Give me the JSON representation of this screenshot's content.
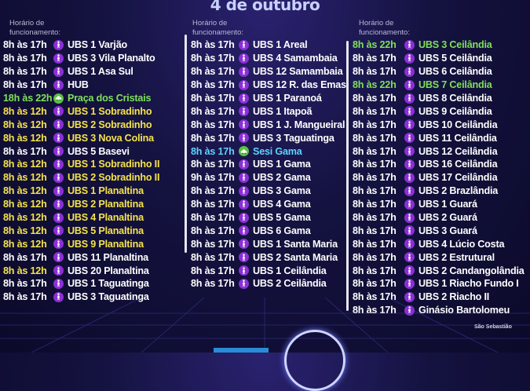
{
  "title": "4 de outubro",
  "header_label_line1": "Horário de",
  "header_label_line2": "funcionamento:",
  "footer_note": "São Sebastião",
  "colors": {
    "yellow": "#f5e34a",
    "green": "#7fe05a",
    "blue": "#5ed3ff",
    "purple_icon": "#8b2fd6",
    "green_icon": "#5cbf45"
  },
  "columns": [
    {
      "rows": [
        {
          "time": "8h às 17h",
          "name": "UBS 1 Varjão",
          "color": "white",
          "icon": "vaccine-person-icon"
        },
        {
          "time": "8h às 17h",
          "name": "UBS 3 Vila Planalto",
          "color": "white",
          "icon": "vaccine-person-icon"
        },
        {
          "time": "8h às 17h",
          "name": "UBS 1 Asa Sul",
          "color": "white",
          "icon": "vaccine-person-icon"
        },
        {
          "time": "8h às 17h",
          "name": "HUB",
          "color": "white",
          "icon": "vaccine-person-icon"
        },
        {
          "time": "18h às 22h",
          "name": "Praça dos Cristais",
          "color": "green",
          "icon": "drive-thru-icon"
        },
        {
          "time": "8h às 12h",
          "name": "UBS 1 Sobradinho",
          "color": "yellow",
          "icon": "vaccine-person-icon"
        },
        {
          "time": "8h às 12h",
          "name": "UBS 2 Sobradinho",
          "color": "yellow",
          "icon": "vaccine-person-icon"
        },
        {
          "time": "8h às 12h",
          "name": "UBS 3 Nova Colina",
          "color": "yellow",
          "icon": "vaccine-person-icon"
        },
        {
          "time": "8h às 17h",
          "name": "UBS 5 Basevi",
          "color": "white",
          "icon": "vaccine-person-icon"
        },
        {
          "time": "8h às 12h",
          "name": "UBS 1 Sobradinho II",
          "color": "yellow",
          "icon": "vaccine-person-icon"
        },
        {
          "time": "8h às 12h",
          "name": "UBS 2 Sobradinho II",
          "color": "yellow",
          "icon": "vaccine-person-icon"
        },
        {
          "time": "8h às 12h",
          "name": "UBS 1 Planaltina",
          "color": "yellow",
          "icon": "vaccine-person-icon"
        },
        {
          "time": "8h às 12h",
          "name": "UBS 2 Planaltina",
          "color": "yellow",
          "icon": "vaccine-person-icon"
        },
        {
          "time": "8h às 12h",
          "name": "UBS 4 Planaltina",
          "color": "yellow",
          "icon": "vaccine-person-icon"
        },
        {
          "time": "8h às 12h",
          "name": "UBS 5 Planaltina",
          "color": "yellow",
          "icon": "vaccine-person-icon"
        },
        {
          "time": "8h às 12h",
          "name": "UBS 9 Planaltina",
          "color": "yellow",
          "icon": "vaccine-person-icon"
        },
        {
          "time": "8h às 17h",
          "name": "UBS 11 Planaltina",
          "color": "white",
          "icon": "vaccine-person-icon"
        },
        {
          "time": "8h às 12h",
          "name": "UBS 20 Planaltina",
          "color": "white",
          "time_color": "yellow",
          "icon": "vaccine-person-icon"
        },
        {
          "time": "8h às 17h",
          "name": "UBS 1 Taguatinga",
          "color": "white",
          "icon": "vaccine-person-icon"
        },
        {
          "time": "8h às 17h",
          "name": "UBS 3 Taguatinga",
          "color": "white",
          "icon": "vaccine-person-icon"
        }
      ]
    },
    {
      "rows": [
        {
          "time": "8h às 17h",
          "name": "UBS 1 Areal",
          "color": "white",
          "icon": "vaccine-person-icon"
        },
        {
          "time": "8h às 17h",
          "name": "UBS 4 Samambaia",
          "color": "white",
          "icon": "vaccine-person-icon"
        },
        {
          "time": "8h às 17h",
          "name": "UBS 12 Samambaia",
          "color": "white",
          "icon": "vaccine-person-icon"
        },
        {
          "time": "8h às 17h",
          "name": "UBS 12 R. das Emas",
          "color": "white",
          "icon": "vaccine-person-icon"
        },
        {
          "time": "8h às 17h",
          "name": "UBS 1 Paranoá",
          "color": "white",
          "icon": "vaccine-person-icon"
        },
        {
          "time": "8h às 17h",
          "name": "UBS 1 Itapoã",
          "color": "white",
          "icon": "vaccine-person-icon"
        },
        {
          "time": "8h às 17h",
          "name": "UBS 1 J. Mangueiral",
          "color": "white",
          "icon": "vaccine-person-icon"
        },
        {
          "time": "8h às 17h",
          "name": "UBS 3 Taguatinga",
          "color": "white",
          "icon": "vaccine-person-icon"
        },
        {
          "time": "8h às 17h",
          "name": "Sesi Gama",
          "color": "blue",
          "icon": "drive-thru-icon"
        },
        {
          "time": "8h às 17h",
          "name": "UBS 1 Gama",
          "color": "white",
          "icon": "vaccine-person-icon"
        },
        {
          "time": "9h às 17h",
          "name": "UBS 2 Gama",
          "color": "white",
          "icon": "vaccine-person-icon"
        },
        {
          "time": "8h às 17h",
          "name": "UBS 3 Gama",
          "color": "white",
          "icon": "vaccine-person-icon"
        },
        {
          "time": "8h às 17h",
          "name": "UBS 4 Gama",
          "color": "white",
          "icon": "vaccine-person-icon"
        },
        {
          "time": "8h às 17h",
          "name": "UBS 5 Gama",
          "color": "white",
          "icon": "vaccine-person-icon"
        },
        {
          "time": "8h às 17h",
          "name": "UBS 6 Gama",
          "color": "white",
          "icon": "vaccine-person-icon"
        },
        {
          "time": "8h às 17h",
          "name": "UBS 1 Santa Maria",
          "color": "white",
          "icon": "vaccine-person-icon"
        },
        {
          "time": "8h às 17h",
          "name": "UBS 2 Santa Maria",
          "color": "white",
          "icon": "vaccine-person-icon"
        },
        {
          "time": "8h às 17h",
          "name": "UBS 1 Ceilândia",
          "color": "white",
          "icon": "vaccine-person-icon"
        },
        {
          "time": "8h às 17h",
          "name": "UBS 2 Ceilândia",
          "color": "white",
          "icon": "vaccine-person-icon"
        }
      ]
    },
    {
      "rows": [
        {
          "time": "8h às 22h",
          "name": "UBS 3 Ceilândia",
          "color": "green",
          "icon": "vaccine-person-icon"
        },
        {
          "time": "8h às 17h",
          "name": "UBS 5 Ceilândia",
          "color": "white",
          "icon": "vaccine-person-icon"
        },
        {
          "time": "8h às 17h",
          "name": "UBS 6 Ceilândia",
          "color": "white",
          "icon": "vaccine-person-icon"
        },
        {
          "time": "8h às 22h",
          "name": "UBS 7 Ceilândia",
          "color": "green",
          "icon": "vaccine-person-icon"
        },
        {
          "time": "8h às 17h",
          "name": "UBS 8 Ceilândia",
          "color": "white",
          "icon": "vaccine-person-icon"
        },
        {
          "time": "8h às 17h",
          "name": "UBS 9 Ceilândia",
          "color": "white",
          "icon": "vaccine-person-icon"
        },
        {
          "time": "8h às 17h",
          "name": "UBS 10 Ceilândia",
          "color": "white",
          "icon": "vaccine-person-icon"
        },
        {
          "time": "8h às 17h",
          "name": "UBS 11 Ceilândia",
          "color": "white",
          "icon": "vaccine-person-icon"
        },
        {
          "time": "8h às 17h",
          "name": "UBS 12 Ceilândia",
          "color": "white",
          "icon": "vaccine-person-icon"
        },
        {
          "time": "8h às 17h",
          "name": "UBS 16 Ceilândia",
          "color": "white",
          "icon": "vaccine-person-icon"
        },
        {
          "time": "8h às 17h",
          "name": "UBS 17 Ceilândia",
          "color": "white",
          "icon": "vaccine-person-icon"
        },
        {
          "time": "8h às 17h",
          "name": "UBS 2 Brazlândia",
          "color": "white",
          "icon": "vaccine-person-icon"
        },
        {
          "time": "8h às 17h",
          "name": "UBS 1 Guará",
          "color": "white",
          "icon": "vaccine-person-icon"
        },
        {
          "time": "8h às 17h",
          "name": "UBS 2 Guará",
          "color": "white",
          "icon": "vaccine-person-icon"
        },
        {
          "time": "8h às 17h",
          "name": "UBS 3 Guará",
          "color": "white",
          "icon": "vaccine-person-icon"
        },
        {
          "time": "8h às 17h",
          "name": "UBS 4 Lúcio Costa",
          "color": "white",
          "icon": "vaccine-person-icon"
        },
        {
          "time": "8h às 17h",
          "name": "UBS 2 Estrutural",
          "color": "white",
          "icon": "vaccine-person-icon"
        },
        {
          "time": "8h às 17h",
          "name": "UBS 2 Candangolândia",
          "color": "white",
          "icon": "vaccine-person-icon"
        },
        {
          "time": "8h às 17h",
          "name": "UBS 1 Riacho Fundo I",
          "color": "white",
          "icon": "vaccine-person-icon"
        },
        {
          "time": "8h às 17h",
          "name": "UBS 2 Riacho II",
          "color": "white",
          "icon": "vaccine-person-icon"
        },
        {
          "time": "8h às 17h",
          "name": "Ginásio Bartolomeu",
          "color": "white",
          "icon": "vaccine-person-icon"
        }
      ]
    }
  ]
}
